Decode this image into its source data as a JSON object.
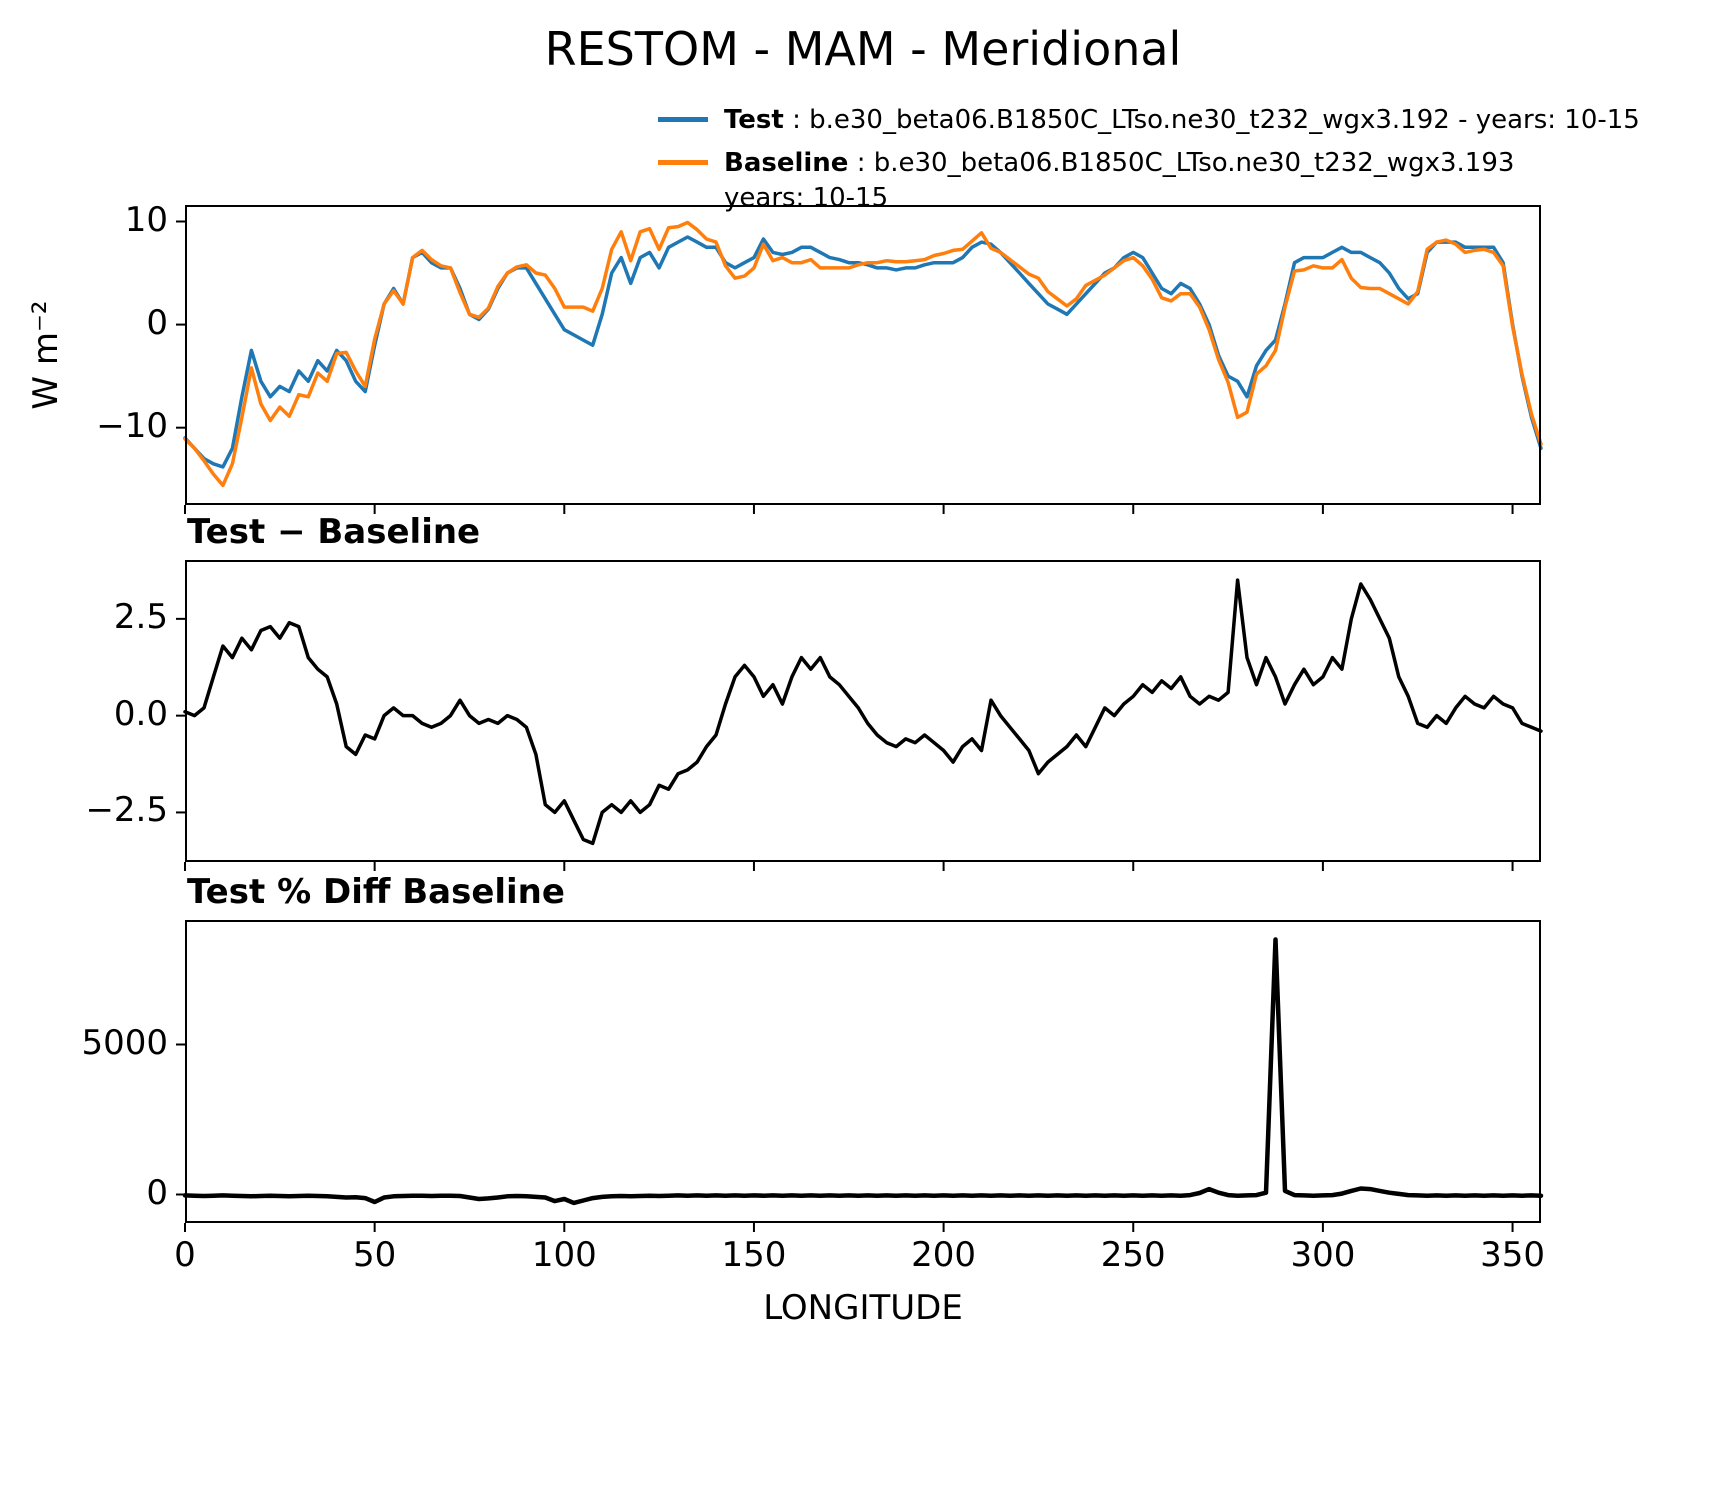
{
  "legend": {
    "entries": [
      {
        "name": "Test",
        "color": "#1f77b4",
        "text": " : b.e30_beta06.B1850C_LTso.ne30_t232_wgx3.192 - years: 10-15",
        "wrap": ""
      },
      {
        "name": "Baseline",
        "color": "#ff7f0e",
        "text": " : b.e30_beta06.B1850C_LTso.ne30_t232_wgx3.193",
        "wrap": "years: 10-15"
      }
    ]
  },
  "chart_data": {
    "type": "line",
    "title": "RESTOM - MAM - Meridional",
    "xlabel": "LONGITUDE",
    "xlim": [
      0,
      357.5
    ],
    "grid": false,
    "legend_position": "upper-center-above-axes",
    "xticks": [
      {
        "label": "0",
        "value": 0
      },
      {
        "label": "50",
        "value": 50
      },
      {
        "label": "100",
        "value": 100
      },
      {
        "label": "150",
        "value": 150
      },
      {
        "label": "200",
        "value": 200
      },
      {
        "label": "250",
        "value": 250
      },
      {
        "label": "300",
        "value": 300
      },
      {
        "label": "350",
        "value": 350
      }
    ],
    "x": [
      0,
      2.5,
      5,
      7.5,
      10,
      12.5,
      15,
      17.5,
      20,
      22.5,
      25,
      27.5,
      30,
      32.5,
      35,
      37.5,
      40,
      42.5,
      45,
      47.5,
      50,
      52.5,
      55,
      57.5,
      60,
      62.5,
      65,
      67.5,
      70,
      72.5,
      75,
      77.5,
      80,
      82.5,
      85,
      87.5,
      90,
      92.5,
      95,
      97.5,
      100,
      102.5,
      105,
      107.5,
      110,
      112.5,
      115,
      117.5,
      120,
      122.5,
      125,
      127.5,
      130,
      132.5,
      135,
      137.5,
      140,
      142.5,
      145,
      147.5,
      150,
      152.5,
      155,
      157.5,
      160,
      162.5,
      165,
      167.5,
      170,
      172.5,
      175,
      177.5,
      180,
      182.5,
      185,
      187.5,
      190,
      192.5,
      195,
      197.5,
      200,
      202.5,
      205,
      207.5,
      210,
      212.5,
      215,
      217.5,
      220,
      222.5,
      225,
      227.5,
      230,
      232.5,
      235,
      237.5,
      240,
      242.5,
      245,
      247.5,
      250,
      252.5,
      255,
      257.5,
      260,
      262.5,
      265,
      267.5,
      270,
      272.5,
      275,
      277.5,
      280,
      282.5,
      285,
      287.5,
      290,
      292.5,
      295,
      297.5,
      300,
      302.5,
      305,
      307.5,
      310,
      312.5,
      315,
      317.5,
      320,
      322.5,
      325,
      327.5,
      330,
      332.5,
      335,
      337.5,
      340,
      342.5,
      345,
      347.5,
      350,
      352.5,
      355,
      357.5
    ],
    "panels": [
      {
        "name": "main",
        "ylabel": "W m⁻²",
        "ylim": [
          -17.5,
          11.6
        ],
        "yticks": [
          {
            "label": "10",
            "value": 10
          },
          {
            "label": "0",
            "value": 0
          },
          {
            "label": "−10",
            "value": -10
          }
        ],
        "series": [
          {
            "name": "Test",
            "color": "#1f77b4",
            "values": [
              -11,
              -12,
              -13,
              -13.5,
              -13.8,
              -12,
              -7,
              -2.5,
              -5.5,
              -7,
              -6,
              -6.5,
              -4.5,
              -5.5,
              -3.5,
              -4.5,
              -2.5,
              -3.5,
              -5.5,
              -6.5,
              -2,
              2,
              3.5,
              2,
              6.5,
              7,
              6,
              5.5,
              5.5,
              3.5,
              1,
              0.5,
              1.5,
              3.5,
              5,
              5.5,
              5.5,
              4,
              2.5,
              1,
              -0.5,
              -1,
              -1.5,
              -2,
              1,
              5,
              6.5,
              4,
              6.5,
              7,
              5.5,
              7.5,
              8,
              8.5,
              8,
              7.5,
              7.5,
              6,
              5.5,
              6,
              6.5,
              8.3,
              7,
              6.8,
              7,
              7.5,
              7.5,
              7,
              6.5,
              6.3,
              6,
              6,
              5.8,
              5.5,
              5.5,
              5.3,
              5.5,
              5.5,
              5.8,
              6,
              6,
              6,
              6.5,
              7.5,
              8,
              7.8,
              7,
              6,
              5,
              4,
              3,
              2,
              1.5,
              1,
              2,
              3,
              4,
              5,
              5.5,
              6.5,
              7,
              6.5,
              5,
              3.5,
              3,
              4,
              3.5,
              2,
              0,
              -3,
              -5,
              -5.5,
              -7,
              -4,
              -2.5,
              -1.5,
              2,
              6,
              6.5,
              6.5,
              6.5,
              7,
              7.5,
              7,
              7,
              6.5,
              6,
              5,
              3.5,
              2.5,
              3,
              7,
              8,
              8,
              8,
              7.5,
              7.5,
              7.5,
              7.5,
              6,
              0,
              -5,
              -9,
              -12
            ]
          },
          {
            "name": "Baseline",
            "color": "#ff7f0e",
            "values": [
              -11.1,
              -12,
              -13.2,
              -14.5,
              -15.6,
              -13.5,
              -9,
              -4.2,
              -7.7,
              -9.3,
              -8,
              -8.9,
              -6.8,
              -7,
              -4.7,
              -5.5,
              -2.8,
              -2.7,
              -4.5,
              -6,
              -1.4,
              2,
              3.3,
              2,
              6.5,
              7.2,
              6.3,
              5.7,
              5.5,
              3.1,
              1,
              0.7,
              1.6,
              3.7,
              5,
              5.6,
              5.8,
              5,
              4.8,
              3.5,
              1.7,
              1.7,
              1.7,
              1.3,
              3.5,
              7.3,
              9,
              6.2,
              9,
              9.3,
              7.3,
              9.4,
              9.5,
              9.9,
              9.2,
              8.3,
              8,
              5.7,
              4.5,
              4.7,
              5.5,
              7.8,
              6.2,
              6.5,
              6,
              6,
              6.3,
              5.5,
              5.5,
              5.5,
              5.5,
              5.8,
              6,
              6,
              6.2,
              6.1,
              6.1,
              6.2,
              6.3,
              6.7,
              6.9,
              7.2,
              7.3,
              8.1,
              8.9,
              7.4,
              7,
              6.3,
              5.6,
              4.9,
              4.5,
              3.2,
              2.5,
              1.8,
              2.5,
              3.8,
              4.3,
              4.8,
              5.5,
              6.2,
              6.5,
              5.7,
              4.4,
              2.6,
              2.3,
              3,
              3,
              1.7,
              -0.5,
              -3.4,
              -5.6,
              -9,
              -8.5,
              -4.8,
              -4,
              -2.5,
              1.7,
              5.2,
              5.3,
              5.7,
              5.5,
              5.5,
              6.3,
              4.5,
              3.6,
              3.5,
              3.5,
              3,
              2.5,
              2,
              3.2,
              7.3,
              8,
              8.2,
              7.8,
              7,
              7.2,
              7.3,
              7,
              5.7,
              -0.2,
              -4.8,
              -8.7,
              -11.6
            ]
          }
        ]
      },
      {
        "name": "diff",
        "label": "Test − Baseline",
        "ylim": [
          -3.78,
          4.02
        ],
        "yticks": [
          {
            "label": "2.5",
            "value": 2.5
          },
          {
            "label": "0.0",
            "value": 0
          },
          {
            "label": "−2.5",
            "value": -2.5
          }
        ],
        "series": [
          {
            "name": "Test minus Baseline",
            "color": "#000000",
            "values": [
              0.1,
              0,
              0.2,
              1,
              1.8,
              1.5,
              2,
              1.7,
              2.2,
              2.3,
              2,
              2.4,
              2.3,
              1.5,
              1.2,
              1,
              0.3,
              -0.8,
              -1,
              -0.5,
              -0.6,
              0,
              0.2,
              0,
              0,
              -0.2,
              -0.3,
              -0.2,
              0,
              0.4,
              0,
              -0.2,
              -0.1,
              -0.2,
              0,
              -0.1,
              -0.3,
              -1,
              -2.3,
              -2.5,
              -2.2,
              -2.7,
              -3.2,
              -3.3,
              -2.5,
              -2.3,
              -2.5,
              -2.2,
              -2.5,
              -2.3,
              -1.8,
              -1.9,
              -1.5,
              -1.4,
              -1.2,
              -0.8,
              -0.5,
              0.3,
              1,
              1.3,
              1,
              0.5,
              0.8,
              0.3,
              1,
              1.5,
              1.2,
              1.5,
              1,
              0.8,
              0.5,
              0.2,
              -0.2,
              -0.5,
              -0.7,
              -0.8,
              -0.6,
              -0.7,
              -0.5,
              -0.7,
              -0.9,
              -1.2,
              -0.8,
              -0.6,
              -0.9,
              0.4,
              0,
              -0.3,
              -0.6,
              -0.9,
              -1.5,
              -1.2,
              -1,
              -0.8,
              -0.5,
              -0.8,
              -0.3,
              0.2,
              0,
              0.3,
              0.5,
              0.8,
              0.6,
              0.9,
              0.7,
              1,
              0.5,
              0.3,
              0.5,
              0.4,
              0.6,
              3.5,
              1.5,
              0.8,
              1.5,
              1,
              0.3,
              0.8,
              1.2,
              0.8,
              1,
              1.5,
              1.2,
              2.5,
              3.4,
              3,
              2.5,
              2,
              1,
              0.5,
              -0.2,
              -0.3,
              0,
              -0.2,
              0.2,
              0.5,
              0.3,
              0.2,
              0.5,
              0.3,
              0.2,
              -0.2,
              -0.3,
              -0.4
            ]
          }
        ]
      },
      {
        "name": "pctdiff",
        "label": "Test % Diff Baseline",
        "ylim": [
          -950,
          9150
        ],
        "yticks": [
          {
            "label": "5000",
            "value": 5000
          },
          {
            "label": "0",
            "value": 0
          }
        ],
        "series": [
          {
            "name": "Test % Diff Baseline",
            "color": "#000000",
            "values": [
              -30,
              -40,
              -50,
              -40,
              -30,
              -40,
              -50,
              -60,
              -50,
              -40,
              -50,
              -60,
              -50,
              -40,
              -50,
              -60,
              -80,
              -100,
              -90,
              -120,
              -250,
              -100,
              -60,
              -50,
              -40,
              -40,
              -50,
              -40,
              -40,
              -50,
              -100,
              -150,
              -130,
              -100,
              -60,
              -50,
              -60,
              -80,
              -100,
              -220,
              -150,
              -280,
              -200,
              -120,
              -80,
              -60,
              -50,
              -60,
              -50,
              -40,
              -50,
              -40,
              -30,
              -40,
              -30,
              -40,
              -30,
              -40,
              -30,
              -40,
              -30,
              -40,
              -30,
              -40,
              -30,
              -40,
              -30,
              -40,
              -30,
              -40,
              -30,
              -40,
              -30,
              -40,
              -30,
              -40,
              -30,
              -40,
              -30,
              -40,
              -30,
              -40,
              -30,
              -40,
              -30,
              -40,
              -30,
              -40,
              -30,
              -40,
              -30,
              -40,
              -30,
              -40,
              -30,
              -40,
              -30,
              -40,
              -30,
              -40,
              -30,
              -40,
              -30,
              -40,
              -30,
              -40,
              -20,
              50,
              180,
              60,
              -20,
              -40,
              -30,
              -20,
              60,
              8500,
              120,
              -20,
              -30,
              -40,
              -30,
              -20,
              30,
              120,
              200,
              180,
              120,
              60,
              20,
              -20,
              -30,
              -40,
              -30,
              -40,
              -30,
              -40,
              -30,
              -40,
              -30,
              -40,
              -30,
              -40,
              -30,
              -40
            ]
          }
        ]
      }
    ]
  }
}
